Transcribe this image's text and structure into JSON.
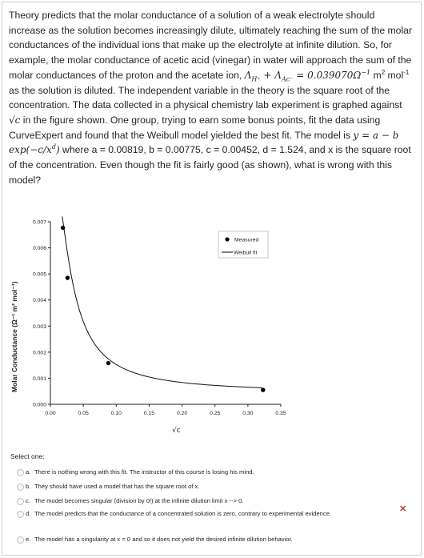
{
  "question": {
    "s1": "Theory predicts that the molar conductance of a solution of a weak electrolyte should increase as the solution becomes increasingly dilute, ultimately reaching the sum of the molar conductances of the individual ions that make up the electrolyte at infinite dilution. So, for example, the molar conductance of acetic acid (vinegar) in water will approach the sum of the molar conductances of the proton and the acetate ion,",
    "eq_lhs": "Λ",
    "eq_sub1": "H⁺",
    "eq_plus": " + Λ",
    "eq_sub2": "Ac⁻",
    "eq_rhs": " = 0.039070Ω",
    "eq_exp": "−1",
    "unit1": " m",
    "unit1_exp": "2",
    "unit2": " mol",
    "unit2_exp": "-1",
    "s2": " as the solution is diluted. The independent variable in the theory is the square root of the concentration. The data collected in a physical chemistry lab experiment is graphed against ",
    "sqrt_c": "√c",
    "s3": " in the figure shown. One group, trying to earn some bonus points, fit the data using CurveExpert and found that the Weibull model yielded the best fit. The model is ",
    "model": "y = a − b exp(−c/x",
    "model_exp": "d",
    "model_close": ")",
    "s4": " where a = 0.00819, b = 0.00775, c = 0.00452, d = 1.524, and x is the square root of the concentration. Even though the fit is fairly good (as shown), what is wrong with this model?"
  },
  "chart_data": {
    "type": "scatter",
    "title": "",
    "xlabel": "√c",
    "ylabel": "Molar Conductance (Ω⁻¹ m² mol⁻¹)",
    "xlim": [
      0.0,
      0.35
    ],
    "ylim": [
      0.0,
      0.007
    ],
    "x_ticks": [
      "0.00",
      "0.05",
      "0.10",
      "0.15",
      "0.20",
      "0.25",
      "0.30",
      "0.35"
    ],
    "y_ticks": [
      "0.000",
      "0.001",
      "0.002",
      "0.003",
      "0.004",
      "0.005",
      "0.006",
      "0.007"
    ],
    "grid": false,
    "legend_position": "top-right",
    "series": [
      {
        "name": "Measured",
        "kind": "points",
        "x": [
          0.019,
          0.026,
          0.088,
          0.323
        ],
        "y": [
          0.00677,
          0.00485,
          0.00158,
          0.00055
        ]
      },
      {
        "name": "Weibull fit",
        "kind": "line"
      }
    ],
    "model_params": {
      "a": 0.00819,
      "b": 0.00775,
      "c": 0.00452,
      "d": 1.524
    }
  },
  "answers": {
    "prompt": "Select one:",
    "options": [
      {
        "letter": "a.",
        "text": "There is nothing wrong with this fit. The instructor of this course is losing his mind."
      },
      {
        "letter": "b.",
        "text": "They should have used a model that has the square root of x."
      },
      {
        "letter": "c.",
        "text": "The model becomes singular (division by 0!) at the infinite dilution limit x --> 0."
      },
      {
        "letter": "d.",
        "text": "The model predicts that the conductance of a concentrated solution is zero, contrary to experimental evidence."
      },
      {
        "letter": "e.",
        "text": "The model has a singularity at x = 0 and so it does not yield the desired infinite dilution behavior."
      }
    ],
    "incorrect_mark": "✕",
    "colors": {
      "incorrect": "#c0392b"
    }
  }
}
